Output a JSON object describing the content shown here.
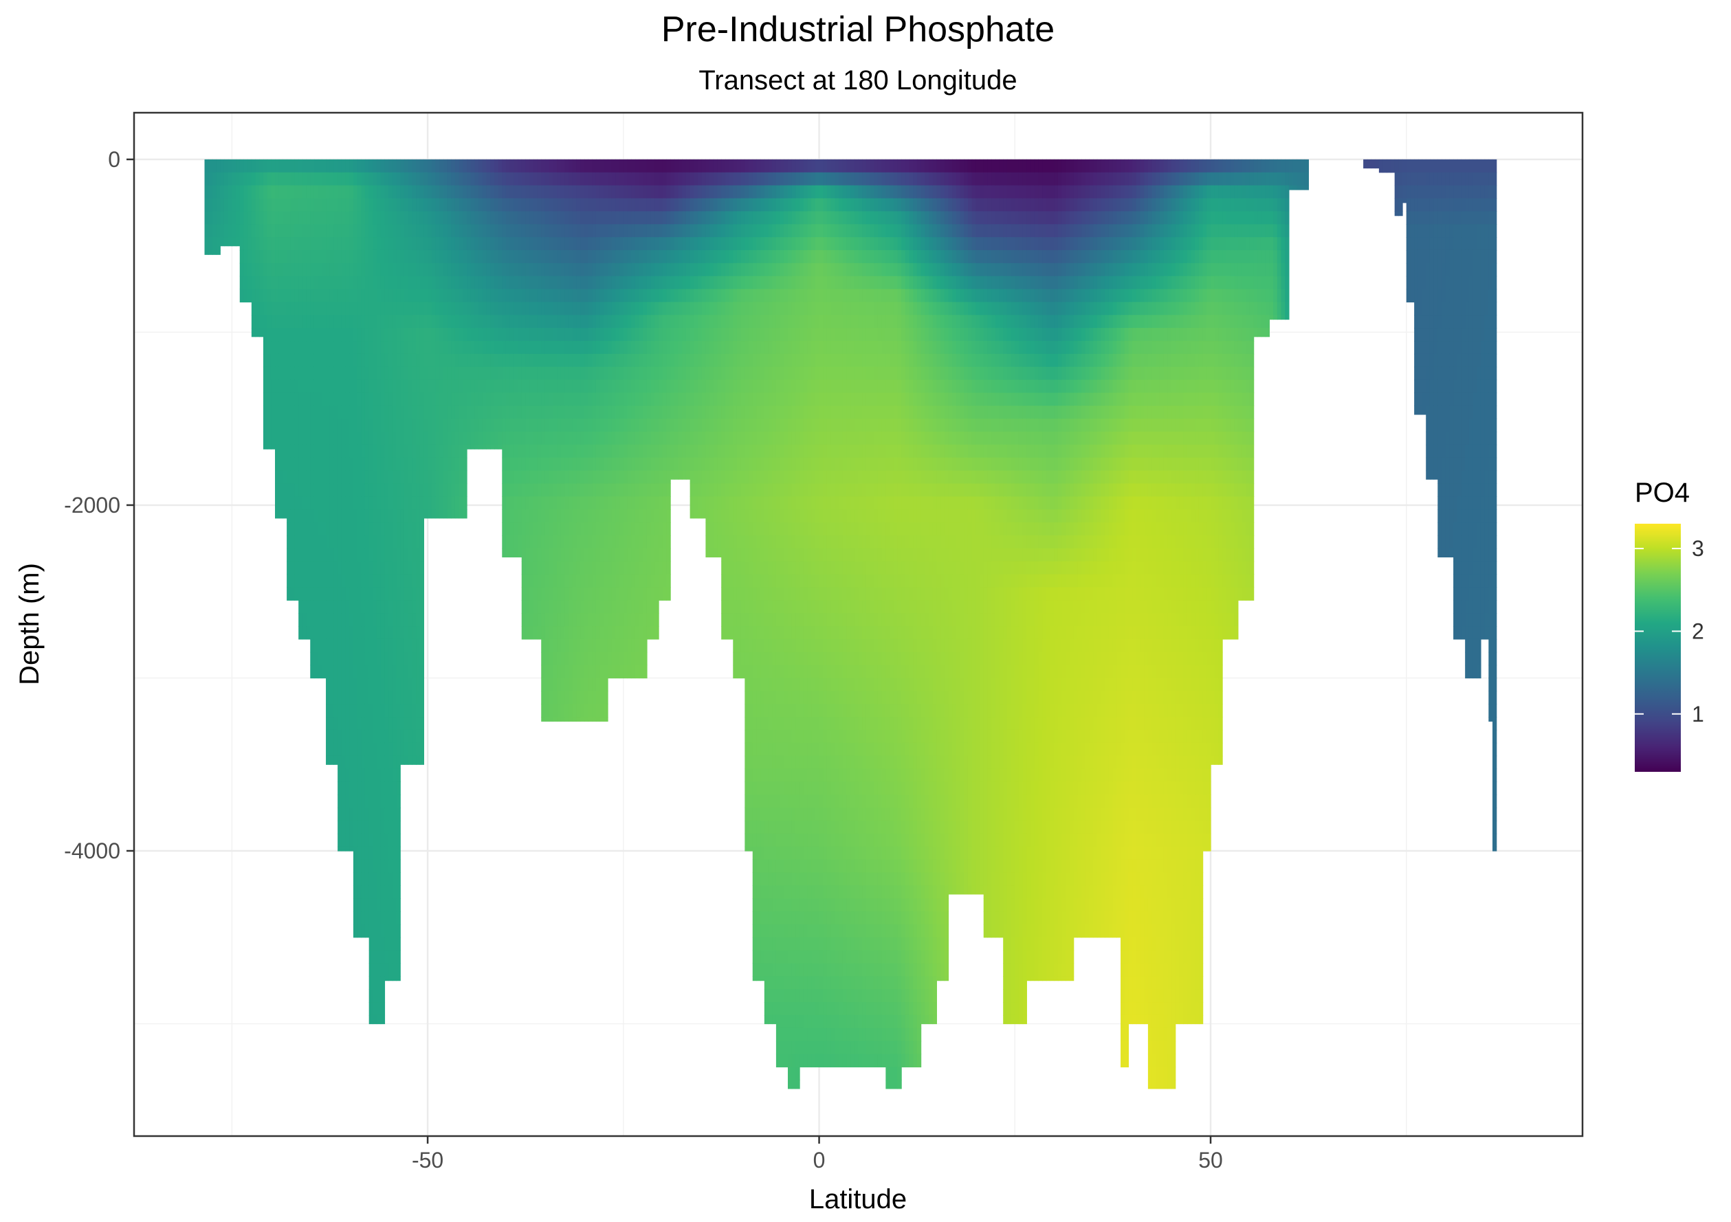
{
  "chart_data": {
    "type": "heatmap",
    "title": "Pre-Industrial Phosphate",
    "subtitle": "Transect at 180 Longitude",
    "xlabel": "Latitude",
    "ylabel": "Depth (m)",
    "xlim": [
      -87.5,
      97.5
    ],
    "ylim": [
      -5650,
      270
    ],
    "x_ticks": [
      -50,
      0,
      50
    ],
    "x_tick_labels": [
      "-50",
      "0",
      "50"
    ],
    "y_ticks": [
      0,
      -2000,
      -4000
    ],
    "y_tick_labels": [
      "0",
      "-2000",
      "-4000"
    ],
    "grid": true,
    "legend": {
      "title": "PO4",
      "position": "right",
      "breaks": [
        1,
        2,
        3
      ],
      "break_labels": [
        "1",
        "2",
        "3"
      ],
      "range": [
        0.3,
        3.3
      ],
      "colormap": [
        "#440154",
        "#3b528b",
        "#21918c",
        "#5ec962",
        "#fde725"
      ]
    },
    "ocean_floor": [
      {
        "x0": -78.5,
        "x1": -76.5,
        "depth": -550
      },
      {
        "x0": -76.5,
        "x1": -74.0,
        "depth": -500
      },
      {
        "x0": -74.0,
        "x1": -72.5,
        "depth": -825
      },
      {
        "x0": -72.5,
        "x1": -71.0,
        "depth": -1025
      },
      {
        "x0": -71.0,
        "x1": -69.5,
        "depth": -1675
      },
      {
        "x0": -69.5,
        "x1": -68.0,
        "depth": -2075
      },
      {
        "x0": -68.0,
        "x1": -66.5,
        "depth": -2550
      },
      {
        "x0": -66.5,
        "x1": -65.0,
        "depth": -2775
      },
      {
        "x0": -65.0,
        "x1": -63.0,
        "depth": -3000
      },
      {
        "x0": -63.0,
        "x1": -61.5,
        "depth": -3500
      },
      {
        "x0": -61.5,
        "x1": -59.5,
        "depth": -4000
      },
      {
        "x0": -59.5,
        "x1": -57.5,
        "depth": -4500
      },
      {
        "x0": -57.5,
        "x1": -55.5,
        "depth": -5000
      },
      {
        "x0": -55.5,
        "x1": -53.5,
        "depth": -4750
      },
      {
        "x0": -53.5,
        "x1": -50.5,
        "depth": -3500
      },
      {
        "x0": -50.5,
        "x1": -45.0,
        "depth": -2075
      },
      {
        "x0": -45.0,
        "x1": -40.5,
        "depth": -1675
      },
      {
        "x0": -40.5,
        "x1": -38.0,
        "depth": -2300
      },
      {
        "x0": -38.0,
        "x1": -35.5,
        "depth": -2775
      },
      {
        "x0": -35.5,
        "x1": -27.0,
        "depth": -3250
      },
      {
        "x0": -27.0,
        "x1": -22.0,
        "depth": -3000
      },
      {
        "x0": -22.0,
        "x1": -20.5,
        "depth": -2775
      },
      {
        "x0": -20.5,
        "x1": -19.0,
        "depth": -2550
      },
      {
        "x0": -19.0,
        "x1": -16.5,
        "depth": -1850
      },
      {
        "x0": -16.5,
        "x1": -14.5,
        "depth": -2075
      },
      {
        "x0": -14.5,
        "x1": -12.5,
        "depth": -2300
      },
      {
        "x0": -12.5,
        "x1": -11.0,
        "depth": -2775
      },
      {
        "x0": -11.0,
        "x1": -9.5,
        "depth": -3000
      },
      {
        "x0": -9.5,
        "x1": -8.5,
        "depth": -4000
      },
      {
        "x0": -8.5,
        "x1": -7.0,
        "depth": -4750
      },
      {
        "x0": -7.0,
        "x1": -5.5,
        "depth": -5000
      },
      {
        "x0": -5.5,
        "x1": -4.0,
        "depth": -5250
      },
      {
        "x0": -4.0,
        "x1": -2.5,
        "depth": -5375
      },
      {
        "x0": -2.5,
        "x1": -1.0,
        "depth": -5250
      },
      {
        "x0": -1.0,
        "x1": 8.5,
        "depth": -5250
      },
      {
        "x0": 8.5,
        "x1": 10.5,
        "depth": -5375
      },
      {
        "x0": 10.5,
        "x1": 13.0,
        "depth": -5250
      },
      {
        "x0": 13.0,
        "x1": 15.0,
        "depth": -5000
      },
      {
        "x0": 15.0,
        "x1": 16.5,
        "depth": -4750
      },
      {
        "x0": 16.5,
        "x1": 21.0,
        "depth": -4250
      },
      {
        "x0": 21.0,
        "x1": 23.5,
        "depth": -4500
      },
      {
        "x0": 23.5,
        "x1": 26.5,
        "depth": -5000
      },
      {
        "x0": 26.5,
        "x1": 32.5,
        "depth": -4750
      },
      {
        "x0": 32.5,
        "x1": 38.5,
        "depth": -4500
      },
      {
        "x0": 38.5,
        "x1": 39.5,
        "depth": -5250
      },
      {
        "x0": 39.5,
        "x1": 42.0,
        "depth": -5000
      },
      {
        "x0": 42.0,
        "x1": 45.5,
        "depth": -5375
      },
      {
        "x0": 45.5,
        "x1": 49.0,
        "depth": -5000
      },
      {
        "x0": 49.0,
        "x1": 50.0,
        "depth": -4000
      },
      {
        "x0": 50.0,
        "x1": 51.5,
        "depth": -3500
      },
      {
        "x0": 51.5,
        "x1": 53.5,
        "depth": -2775
      },
      {
        "x0": 53.5,
        "x1": 55.5,
        "depth": -2550
      },
      {
        "x0": 55.5,
        "x1": 57.5,
        "depth": -1025
      },
      {
        "x0": 57.5,
        "x1": 60.0,
        "depth": -925
      },
      {
        "x0": 60.0,
        "x1": 62.5,
        "depth": -175
      },
      {
        "x0": 69.5,
        "x1": 71.5,
        "depth": -50
      },
      {
        "x0": 71.5,
        "x1": 73.5,
        "depth": -75
      },
      {
        "x0": 73.5,
        "x1": 74.5,
        "depth": -325
      },
      {
        "x0": 74.5,
        "x1": 75.0,
        "depth": -250
      },
      {
        "x0": 75.0,
        "x1": 76.0,
        "depth": -825
      },
      {
        "x0": 76.0,
        "x1": 77.5,
        "depth": -1475
      },
      {
        "x0": 77.5,
        "x1": 79.0,
        "depth": -1850
      },
      {
        "x0": 79.0,
        "x1": 81.0,
        "depth": -2300
      },
      {
        "x0": 81.0,
        "x1": 82.5,
        "depth": -2775
      },
      {
        "x0": 82.5,
        "x1": 84.5,
        "depth": -3000
      },
      {
        "x0": 84.5,
        "x1": 85.5,
        "depth": -2775
      },
      {
        "x0": 85.5,
        "x1": 86.0,
        "depth": -3250
      },
      {
        "x0": 86.0,
        "x1": 86.5,
        "depth": -4000
      }
    ],
    "profiles": [
      {
        "lat": -78,
        "po4": [
          [
            0,
            1.8
          ],
          [
            -500,
            2.0
          ]
        ]
      },
      {
        "lat": -70,
        "po4": [
          [
            0,
            1.9
          ],
          [
            -150,
            2.3
          ],
          [
            -1000,
            2.1
          ],
          [
            -5000,
            2.0
          ]
        ]
      },
      {
        "lat": -60,
        "po4": [
          [
            0,
            1.8
          ],
          [
            -150,
            2.25
          ],
          [
            -1000,
            2.1
          ],
          [
            -5000,
            2.05
          ]
        ]
      },
      {
        "lat": -50,
        "po4": [
          [
            0,
            1.4
          ],
          [
            -300,
            1.85
          ],
          [
            -1000,
            2.2
          ],
          [
            -5000,
            2.1
          ]
        ]
      },
      {
        "lat": -40,
        "po4": [
          [
            0,
            0.7
          ],
          [
            -300,
            1.3
          ],
          [
            -700,
            1.7
          ],
          [
            -1200,
            2.2
          ],
          [
            -2000,
            2.45
          ],
          [
            -3250,
            2.5
          ]
        ]
      },
      {
        "lat": -30,
        "po4": [
          [
            0,
            0.4
          ],
          [
            -200,
            0.9
          ],
          [
            -700,
            1.5
          ],
          [
            -1200,
            2.2
          ],
          [
            -2000,
            2.55
          ],
          [
            -3250,
            2.65
          ]
        ]
      },
      {
        "lat": -20,
        "po4": [
          [
            0,
            0.35
          ],
          [
            -200,
            0.7
          ],
          [
            -500,
            1.6
          ],
          [
            -900,
            2.3
          ],
          [
            -2000,
            2.65
          ],
          [
            -3000,
            2.7
          ]
        ]
      },
      {
        "lat": -10,
        "po4": [
          [
            0,
            0.4
          ],
          [
            -300,
            1.8
          ],
          [
            -800,
            2.5
          ],
          [
            -2000,
            2.75
          ],
          [
            -3500,
            2.65
          ],
          [
            -5000,
            2.4
          ]
        ]
      },
      {
        "lat": 0,
        "po4": [
          [
            0,
            0.6
          ],
          [
            -200,
            2.2
          ],
          [
            -600,
            2.6
          ],
          [
            -2000,
            2.85
          ],
          [
            -4000,
            2.6
          ],
          [
            -5300,
            2.35
          ]
        ]
      },
      {
        "lat": 10,
        "po4": [
          [
            0,
            0.45
          ],
          [
            -300,
            1.9
          ],
          [
            -800,
            2.6
          ],
          [
            -2000,
            2.9
          ],
          [
            -4000,
            2.7
          ],
          [
            -5300,
            2.4
          ]
        ]
      },
      {
        "lat": 20,
        "po4": [
          [
            0,
            0.3
          ],
          [
            -400,
            1.0
          ],
          [
            -900,
            2.2
          ],
          [
            -2000,
            2.9
          ],
          [
            -4000,
            2.9
          ]
        ]
      },
      {
        "lat": 30,
        "po4": [
          [
            0,
            0.3
          ],
          [
            -300,
            0.7
          ],
          [
            -800,
            1.6
          ],
          [
            -1500,
            2.55
          ],
          [
            -2500,
            3.0
          ],
          [
            -4800,
            3.05
          ]
        ]
      },
      {
        "lat": 40,
        "po4": [
          [
            0,
            0.5
          ],
          [
            -400,
            1.4
          ],
          [
            -1000,
            2.5
          ],
          [
            -2000,
            3.0
          ],
          [
            -4000,
            3.15
          ],
          [
            -5300,
            3.2
          ]
        ]
      },
      {
        "lat": 50,
        "po4": [
          [
            0,
            0.9
          ],
          [
            -200,
            2.0
          ],
          [
            -800,
            2.5
          ],
          [
            -2000,
            2.95
          ],
          [
            -4000,
            3.1
          ]
        ]
      },
      {
        "lat": 58,
        "po4": [
          [
            0,
            1.3
          ],
          [
            -200,
            1.9
          ],
          [
            -500,
            2.3
          ],
          [
            -2000,
            2.85
          ],
          [
            -3000,
            2.95
          ]
        ]
      },
      {
        "lat": 63,
        "po4": [
          [
            0,
            1.5
          ]
        ]
      },
      {
        "lat": 70,
        "po4": [
          [
            0,
            0.9
          ],
          [
            -50,
            1.0
          ]
        ]
      },
      {
        "lat": 75,
        "po4": [
          [
            0,
            1.0
          ],
          [
            -400,
            1.3
          ],
          [
            -4000,
            1.35
          ]
        ]
      },
      {
        "lat": 87,
        "po4": [
          [
            0,
            1.0
          ],
          [
            -400,
            1.35
          ],
          [
            -4000,
            1.4
          ]
        ]
      }
    ]
  }
}
